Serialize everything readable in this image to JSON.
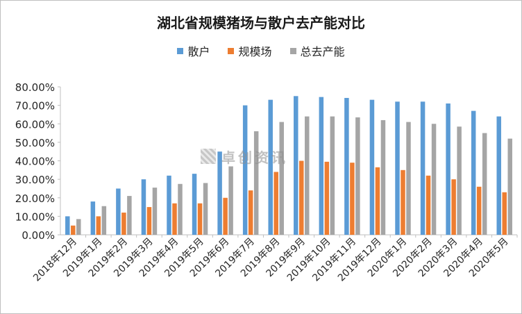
{
  "chart_data": {
    "type": "bar",
    "title": "湖北省规模猪场与散户去产能对比",
    "categories": [
      "2018年12月",
      "2019年1月",
      "2019年2月",
      "2019年3月",
      "2019年4月",
      "2019年5月",
      "2019年6月",
      "2019年7月",
      "2019年8月",
      "2019年9月",
      "2019年10月",
      "2019年11月",
      "2019年12月",
      "2020年1月",
      "2020年2月",
      "2020年3月",
      "2020年4月",
      "2020年5月"
    ],
    "series": [
      {
        "name": "散户",
        "color": "#5b9bd5",
        "values": [
          10,
          18,
          25,
          30,
          32,
          33,
          45,
          70,
          73,
          75,
          74.5,
          74,
          73,
          72,
          72,
          71,
          67,
          64
        ]
      },
      {
        "name": "规模场",
        "color": "#ed7d31",
        "values": [
          5,
          10,
          12,
          15,
          17,
          17,
          20,
          24,
          34,
          40,
          39.5,
          39,
          36.5,
          35,
          32,
          30,
          26,
          23
        ]
      },
      {
        "name": "总去产能",
        "color": "#a5a5a5",
        "values": [
          8.5,
          15.5,
          21,
          25.5,
          27.5,
          28,
          37,
          56,
          61,
          64,
          64,
          63.5,
          62,
          61,
          60,
          58.5,
          55,
          52
        ]
      }
    ],
    "ylim": [
      0,
      80
    ],
    "yticks": [
      "0.00%",
      "10.00%",
      "20.00%",
      "30.00%",
      "40.00%",
      "50.00%",
      "60.00%",
      "70.00%",
      "80.00%"
    ],
    "legend_position": "top-center",
    "grid": false
  },
  "watermark": {
    "text": "卓创资讯"
  }
}
